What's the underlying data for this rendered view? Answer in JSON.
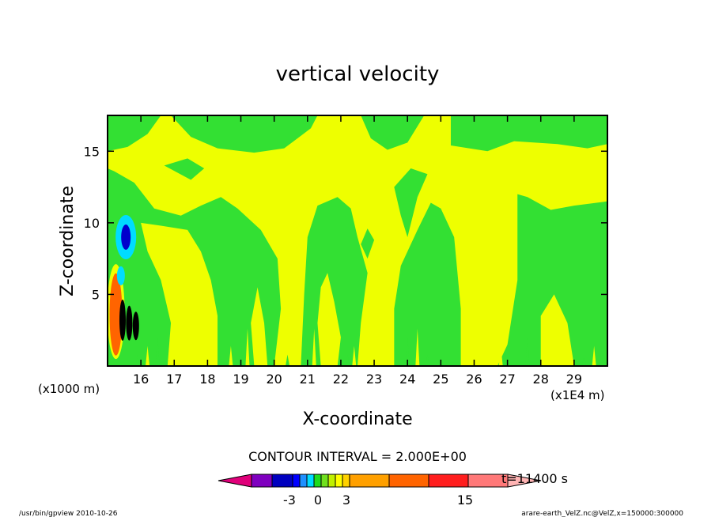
{
  "chart_data": {
    "type": "heatmap",
    "title": "vertical velocity",
    "xlabel": "X-coordinate",
    "ylabel": "Z-coordinate",
    "x_units_note": "(x1E4 m)",
    "y_units_note": "(x1000 m)",
    "xlim": [
      15.0,
      30.0
    ],
    "ylim": [
      0.0,
      17.5
    ],
    "x_ticks": [
      "16",
      "17",
      "18",
      "19",
      "20",
      "21",
      "22",
      "23",
      "24",
      "25",
      "26",
      "27",
      "28",
      "29"
    ],
    "y_ticks": [
      "5",
      "10",
      "15"
    ],
    "contour_interval_label": "CONTOUR INTERVAL = 2.000E+00",
    "time_label": "t=11400 s",
    "colorbar": {
      "tick_labels": [
        "-3",
        "0",
        "3",
        "15"
      ],
      "colors": [
        "#e0007a",
        "#7f00bf",
        "#0000bf",
        "#0000ff",
        "#1e90ff",
        "#00dcff",
        "#1edc1e",
        "#70e01e",
        "#c0f000",
        "#ffff00",
        "#ffd200",
        "#ffa000",
        "#ff6400",
        "#ff1e1e",
        "#ff7878",
        "#ffb4b4"
      ]
    },
    "field_colors": {
      "positive_weak": "#eeff00",
      "negative_weak": "#33e033",
      "strong_up": "#ff6400",
      "strong_down": "#0000cc",
      "cyan": "#00dcff",
      "black": "#000000"
    }
  },
  "footer": {
    "left": "/usr/bin/gpview   2010-10-26",
    "right": "arare-earth_VelZ.nc@VelZ,x=150000:300000"
  }
}
